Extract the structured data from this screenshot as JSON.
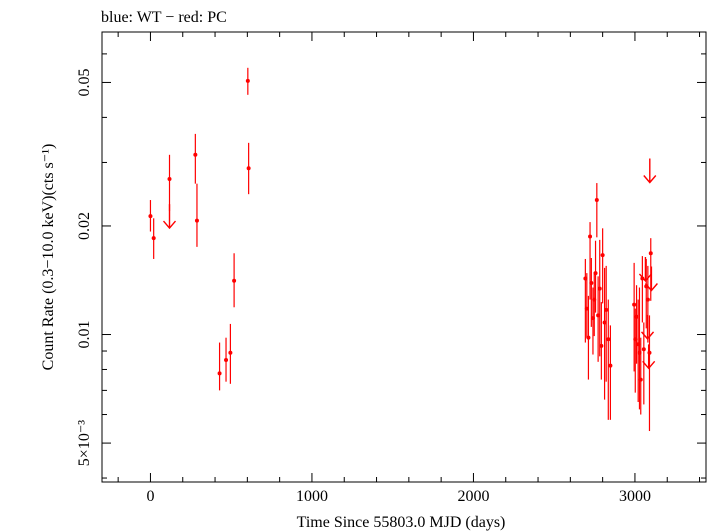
{
  "header": {
    "legend_text": "blue: WT − red: PC"
  },
  "colors": {
    "pc": "#ff0000",
    "wt": "#0000ff",
    "axis": "#000000",
    "background": "#ffffff"
  },
  "chart_data": {
    "type": "scatter",
    "title": "",
    "xlabel": "Time Since 55803.0 MJD (days)",
    "ylabel": "Count Rate (0.3−10.0 keV)(cts s⁻¹)",
    "xlim": [
      -300,
      3440
    ],
    "ylim": [
      0.0039,
      0.069
    ],
    "yscale": "log",
    "x_ticks": [
      {
        "value": 0,
        "label": "0"
      },
      {
        "value": 1000,
        "label": "1000"
      },
      {
        "value": 2000,
        "label": "2000"
      },
      {
        "value": 3000,
        "label": "3000"
      }
    ],
    "y_ticks": [
      {
        "value": 0.005,
        "label": "5×10⁻³"
      },
      {
        "value": 0.01,
        "label": "0.01"
      },
      {
        "value": 0.02,
        "label": "0.02"
      },
      {
        "value": 0.05,
        "label": "0.05"
      }
    ],
    "grid": false,
    "series": [
      {
        "name": "PC",
        "color": "#ff0000",
        "points": [
          {
            "x": 0,
            "y": 0.0213,
            "lo": 0.0193,
            "hi": 0.0236
          },
          {
            "x": 20,
            "y": 0.0185,
            "lo": 0.0162,
            "hi": 0.021
          },
          {
            "x": 118,
            "y": 0.027,
            "lo": 0.022,
            "hi": 0.0315
          },
          {
            "x": 278,
            "y": 0.0315,
            "lo": 0.0262,
            "hi": 0.036
          },
          {
            "x": 288,
            "y": 0.0207,
            "lo": 0.0175,
            "hi": 0.0262
          },
          {
            "x": 428,
            "y": 0.0078,
            "lo": 0.007,
            "hi": 0.0095
          },
          {
            "x": 468,
            "y": 0.0085,
            "lo": 0.0074,
            "hi": 0.0098
          },
          {
            "x": 495,
            "y": 0.0089,
            "lo": 0.0073,
            "hi": 0.0107
          },
          {
            "x": 518,
            "y": 0.0141,
            "lo": 0.0119,
            "hi": 0.0168
          },
          {
            "x": 603,
            "y": 0.0505,
            "lo": 0.0462,
            "hi": 0.0549
          },
          {
            "x": 608,
            "y": 0.0289,
            "lo": 0.0245,
            "hi": 0.034
          },
          {
            "x": 2693,
            "y": 0.0143,
            "lo": 0.0095,
            "hi": 0.0162
          },
          {
            "x": 2702,
            "y": 0.0118,
            "lo": 0.0098,
            "hi": 0.0148
          },
          {
            "x": 2712,
            "y": 0.0098,
            "lo": 0.0075,
            "hi": 0.0128
          },
          {
            "x": 2722,
            "y": 0.0187,
            "lo": 0.0125,
            "hi": 0.0205
          },
          {
            "x": 2730,
            "y": 0.0139,
            "lo": 0.0105,
            "hi": 0.0163
          },
          {
            "x": 2740,
            "y": 0.0111,
            "lo": 0.0088,
            "hi": 0.0135
          },
          {
            "x": 2748,
            "y": 0.0125,
            "lo": 0.0099,
            "hi": 0.0149
          },
          {
            "x": 2756,
            "y": 0.0148,
            "lo": 0.0115,
            "hi": 0.0182
          },
          {
            "x": 2764,
            "y": 0.0236,
            "lo": 0.0186,
            "hi": 0.0263
          },
          {
            "x": 2772,
            "y": 0.0113,
            "lo": 0.0084,
            "hi": 0.0145
          },
          {
            "x": 2782,
            "y": 0.0134,
            "lo": 0.0087,
            "hi": 0.0183
          },
          {
            "x": 2792,
            "y": 0.0093,
            "lo": 0.0075,
            "hi": 0.0123
          },
          {
            "x": 2800,
            "y": 0.0166,
            "lo": 0.0122,
            "hi": 0.0197
          },
          {
            "x": 2812,
            "y": 0.0108,
            "lo": 0.0066,
            "hi": 0.0153
          },
          {
            "x": 2822,
            "y": 0.0117,
            "lo": 0.0074,
            "hi": 0.0155
          },
          {
            "x": 2835,
            "y": 0.0097,
            "lo": 0.0058,
            "hi": 0.0125
          },
          {
            "x": 2848,
            "y": 0.0082,
            "lo": 0.0058,
            "hi": 0.0106
          },
          {
            "x": 2995,
            "y": 0.0121,
            "lo": 0.0079,
            "hi": 0.0158
          },
          {
            "x": 3002,
            "y": 0.0097,
            "lo": 0.0069,
            "hi": 0.0118
          },
          {
            "x": 3010,
            "y": 0.0112,
            "lo": 0.0083,
            "hi": 0.0137
          },
          {
            "x": 3020,
            "y": 0.0094,
            "lo": 0.0065,
            "hi": 0.0125
          },
          {
            "x": 3028,
            "y": 0.0089,
            "lo": 0.0062,
            "hi": 0.0135
          },
          {
            "x": 3036,
            "y": 0.0075,
            "lo": 0.006,
            "hi": 0.0098
          },
          {
            "x": 3046,
            "y": 0.0143,
            "lo": 0.0108,
            "hi": 0.0165
          },
          {
            "x": 3055,
            "y": 0.0091,
            "lo": 0.0064,
            "hi": 0.0108
          },
          {
            "x": 3070,
            "y": 0.0136,
            "lo": 0.0104,
            "hi": 0.0162
          },
          {
            "x": 3080,
            "y": 0.0125,
            "lo": 0.0095,
            "hi": 0.0155
          },
          {
            "x": 3090,
            "y": 0.0089,
            "lo": 0.0054,
            "hi": 0.0113
          },
          {
            "x": 3098,
            "y": 0.0168,
            "lo": 0.0124,
            "hi": 0.0185
          }
        ]
      }
    ],
    "upper_limits": [
      {
        "x": 118,
        "y": 0.0213
      },
      {
        "x": 3065,
        "y": 0.0152
      },
      {
        "x": 3078,
        "y": 0.0105
      },
      {
        "x": 3085,
        "y": 0.0087
      },
      {
        "x": 3092,
        "y": 0.0285
      },
      {
        "x": 3102,
        "y": 0.0143
      }
    ]
  }
}
